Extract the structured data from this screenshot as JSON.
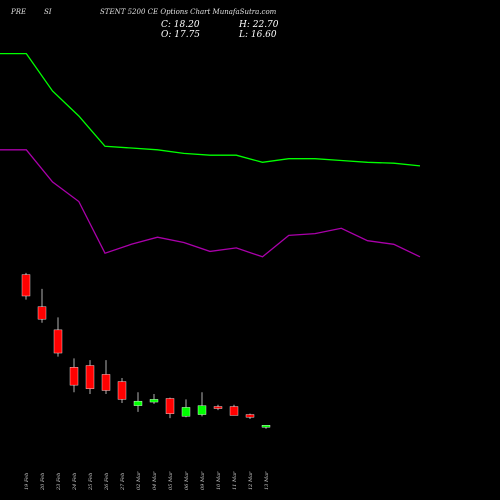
{
  "header": {
    "left": "PRE",
    "mid": "SI",
    "title": "STENT 5200 CE Options Chart MunafaSutra.com"
  },
  "ohlc": {
    "c": "C: 18.20",
    "h": "H: 22.70",
    "o": "O: 17.75",
    "l": "L: 16.60"
  },
  "colors": {
    "up": "#00ff00",
    "down": "#ff0000",
    "upper_band": "#00ff00",
    "lower_band": "#aa00aa",
    "background": "#000000"
  },
  "chart_data": {
    "type": "candlestick",
    "title": "STENT 5200 CE Options Chart",
    "categories": [
      "19 Feb",
      "20 Feb",
      "23 Feb",
      "24 Feb",
      "25 Feb",
      "26 Feb",
      "27 Feb",
      "02 Mar",
      "04 Mar",
      "05 Mar",
      "06 Mar",
      "09 Mar",
      "10 Mar",
      "11 Mar",
      "12 Mar",
      "13 Mar"
    ],
    "candles": [
      {
        "open": 268,
        "high": 270,
        "low": 240,
        "close": 244
      },
      {
        "open": 232,
        "high": 252,
        "low": 214,
        "close": 218
      },
      {
        "open": 206,
        "high": 220,
        "low": 176,
        "close": 180
      },
      {
        "open": 164,
        "high": 174,
        "low": 136,
        "close": 144
      },
      {
        "open": 166,
        "high": 172,
        "low": 134,
        "close": 140
      },
      {
        "open": 156,
        "high": 172,
        "low": 134,
        "close": 138
      },
      {
        "open": 148,
        "high": 152,
        "low": 124,
        "close": 128
      },
      {
        "open": 121,
        "high": 136,
        "low": 114,
        "close": 126
      },
      {
        "open": 125,
        "high": 134,
        "low": 123,
        "close": 128
      },
      {
        "open": 129,
        "high": 130,
        "low": 107,
        "close": 112
      },
      {
        "open": 109,
        "high": 128,
        "low": 108,
        "close": 119
      },
      {
        "open": 111,
        "high": 136,
        "low": 109,
        "close": 121
      },
      {
        "open": 120,
        "high": 122,
        "low": 116,
        "close": 118
      },
      {
        "open": 120,
        "high": 122,
        "low": 110,
        "close": 110
      },
      {
        "open": 111,
        "high": 112,
        "low": 106,
        "close": 108
      },
      {
        "open": 97,
        "high": 99,
        "low": 95,
        "close": 99
      }
    ],
    "upper_band_x": [
      0,
      1,
      2,
      3,
      4,
      5,
      6,
      7,
      8,
      9,
      10,
      11,
      12,
      13,
      14,
      15,
      16
    ],
    "upper_band": [
      516,
      516,
      474,
      446,
      412,
      410,
      408,
      404,
      402,
      402,
      394,
      398,
      398,
      396,
      394,
      393,
      390
    ],
    "lower_band_x": [
      0,
      1,
      2,
      3,
      4,
      5,
      6,
      7,
      8,
      9,
      10,
      11,
      12,
      13,
      14,
      15,
      16
    ],
    "lower_band": [
      408,
      408,
      372,
      350,
      292,
      302,
      310,
      304,
      294,
      298,
      288,
      312,
      314,
      320,
      306,
      302,
      288
    ],
    "ylim": [
      60,
      520
    ]
  }
}
